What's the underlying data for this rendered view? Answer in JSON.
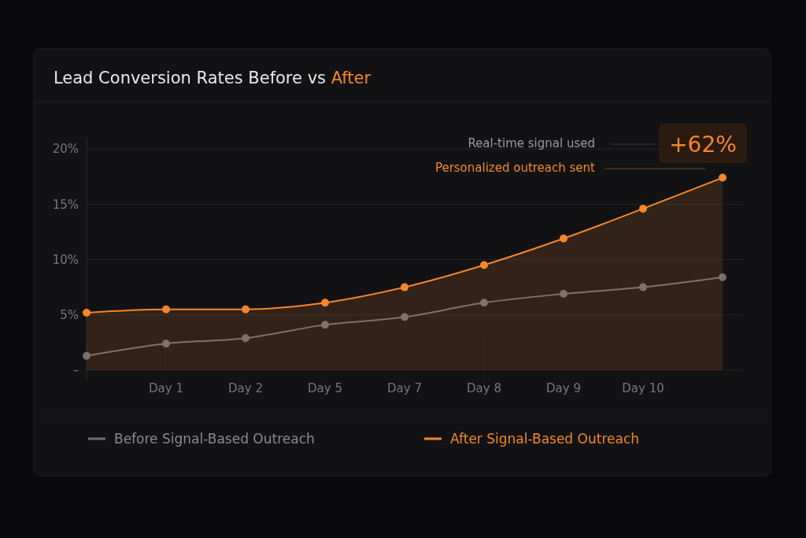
{
  "chart_data": {
    "type": "line",
    "title": "Lead Conversion Rates  Before vs After",
    "categories": [
      null,
      "Day 1",
      "Day 2",
      "Day 5",
      "Day 7",
      "Day 8",
      "Day 9",
      "Day 10",
      null
    ],
    "series": [
      {
        "name": "Before Signal-Based Outreach",
        "color": "#6e6e76",
        "values": [
          1.3,
          2.4,
          2.9,
          4.1,
          4.8,
          6.1,
          6.9,
          7.5,
          8.4
        ]
      },
      {
        "name": "After Signal-Based Outreach",
        "type": "area",
        "color": "#f5862a",
        "values": [
          5.2,
          5.5,
          5.5,
          6.1,
          7.5,
          9.5,
          11.9,
          14.6,
          17.4
        ]
      }
    ],
    "ylim": [
      -1,
      21
    ],
    "yticks": [
      {
        "value": 0,
        "label": "–"
      },
      {
        "value": 5,
        "label": "5%"
      },
      {
        "value": 10,
        "label": "10%"
      },
      {
        "value": 15,
        "label": "15%"
      },
      {
        "value": 20,
        "label": "20%"
      }
    ],
    "annotations": [
      "Real-time signal used",
      "Personalized outreach sent",
      "+62%"
    ],
    "grid": true,
    "legend": "bottom",
    "marker": "circle",
    "line_style": "solid"
  }
}
